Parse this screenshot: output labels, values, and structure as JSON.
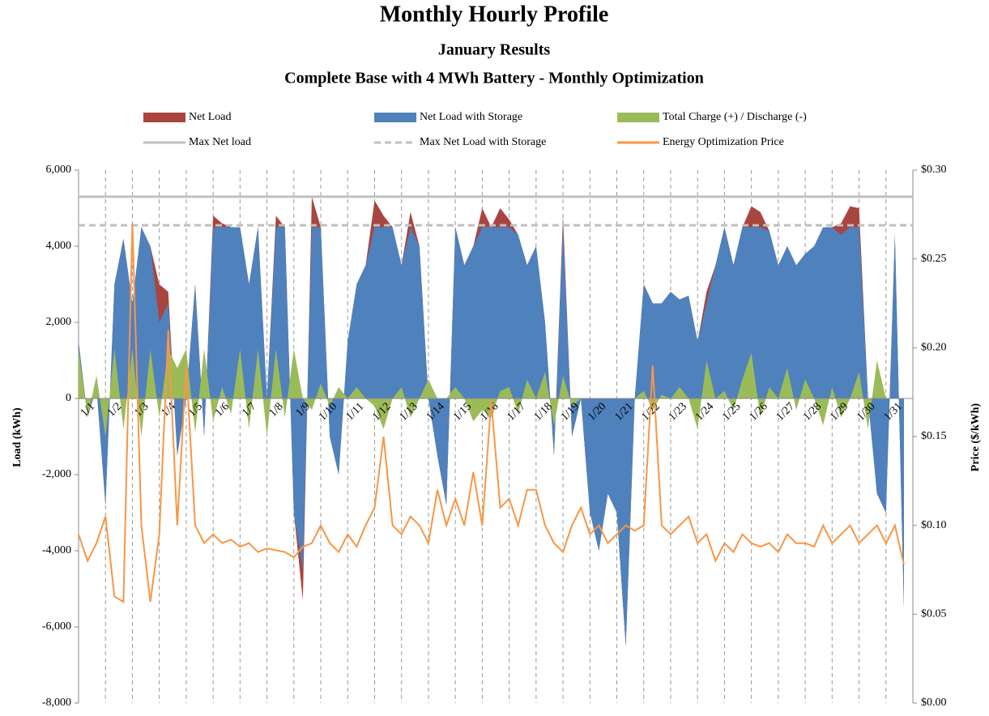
{
  "chart_data": {
    "type": "area",
    "title": "Monthly Hourly Profile",
    "subtitles": [
      "January Results",
      "Complete Base with 4 MWh Battery - Monthly Optimization"
    ],
    "ylabel": "Load (kWh)",
    "y2label": "Price ($/kWh)",
    "xlim": [
      0,
      744
    ],
    "xticks": [
      {
        "value": 0,
        "label": "1/1"
      },
      {
        "value": 24,
        "label": "1/2"
      },
      {
        "value": 48,
        "label": "1/3"
      },
      {
        "value": 72,
        "label": "1/4"
      },
      {
        "value": 96,
        "label": "1/5"
      },
      {
        "value": 120,
        "label": "1/6"
      },
      {
        "value": 144,
        "label": "1/7"
      },
      {
        "value": 168,
        "label": "1/8"
      },
      {
        "value": 192,
        "label": "1/9"
      },
      {
        "value": 216,
        "label": "1/10"
      },
      {
        "value": 240,
        "label": "1/11"
      },
      {
        "value": 264,
        "label": "1/12"
      },
      {
        "value": 288,
        "label": "1/13"
      },
      {
        "value": 312,
        "label": "1/14"
      },
      {
        "value": 336,
        "label": "1/15"
      },
      {
        "value": 360,
        "label": "1/16"
      },
      {
        "value": 384,
        "label": "1/17"
      },
      {
        "value": 408,
        "label": "1/18"
      },
      {
        "value": 432,
        "label": "1/19"
      },
      {
        "value": 456,
        "label": "1/20"
      },
      {
        "value": 480,
        "label": "1/21"
      },
      {
        "value": 504,
        "label": "1/22"
      },
      {
        "value": 528,
        "label": "1/23"
      },
      {
        "value": 552,
        "label": "1/24"
      },
      {
        "value": 576,
        "label": "1/25"
      },
      {
        "value": 600,
        "label": "1/26"
      },
      {
        "value": 624,
        "label": "1/27"
      },
      {
        "value": 648,
        "label": "1/28"
      },
      {
        "value": 672,
        "label": "1/29"
      },
      {
        "value": 696,
        "label": "1/30"
      },
      {
        "value": 720,
        "label": "1/31"
      }
    ],
    "ylim": [
      -8000,
      6000
    ],
    "yticks": [
      {
        "value": -8000,
        "label": "-8,000"
      },
      {
        "value": -6000,
        "label": "-6,000"
      },
      {
        "value": -4000,
        "label": "-4,000"
      },
      {
        "value": -2000,
        "label": "-2,000"
      },
      0,
      {
        "value": 2000,
        "label": "2,000"
      },
      {
        "value": 4000,
        "label": "4,000"
      },
      {
        "value": 6000,
        "label": "6,000"
      }
    ],
    "y2lim": [
      0,
      0.3
    ],
    "y2ticks": [
      {
        "value": 0,
        "label": "$0.00"
      },
      {
        "value": 0.05,
        "label": "$0.05"
      },
      {
        "value": 0.1,
        "label": "$0.10"
      },
      {
        "value": 0.15,
        "label": "$0.15"
      },
      {
        "value": 0.2,
        "label": "$0.20"
      },
      {
        "value": 0.25,
        "label": "$0.25"
      },
      {
        "value": 0.3,
        "label": "$0.30"
      }
    ],
    "x": [
      0,
      8,
      16,
      24,
      32,
      40,
      48,
      56,
      64,
      72,
      80,
      88,
      96,
      104,
      112,
      120,
      128,
      136,
      144,
      152,
      160,
      168,
      176,
      184,
      192,
      200,
      208,
      216,
      224,
      232,
      240,
      248,
      256,
      264,
      272,
      280,
      288,
      296,
      304,
      312,
      320,
      328,
      336,
      344,
      352,
      360,
      368,
      376,
      384,
      392,
      400,
      408,
      416,
      424,
      432,
      440,
      448,
      456,
      464,
      472,
      480,
      488,
      496,
      504,
      512,
      520,
      528,
      536,
      544,
      552,
      560,
      568,
      576,
      584,
      592,
      600,
      608,
      616,
      624,
      632,
      640,
      648,
      656,
      664,
      672,
      680,
      688,
      696,
      704,
      712,
      720,
      728,
      736
    ],
    "series": [
      {
        "name": "Net Load",
        "kind": "area",
        "color": "#a9453f",
        "values": [
          1500,
          -500,
          300,
          -2800,
          3000,
          4200,
          2500,
          4500,
          4000,
          3000,
          2800,
          -1500,
          0,
          3000,
          -1000,
          4800,
          4600,
          4500,
          4500,
          3000,
          4500,
          0,
          4800,
          4500,
          -3000,
          -5300,
          5300,
          4500,
          -1000,
          -2000,
          1500,
          3000,
          3500,
          5200,
          4800,
          4500,
          3500,
          4900,
          4000,
          0,
          -1500,
          -2800,
          4500,
          3500,
          4000,
          5000,
          4500,
          5000,
          4700,
          4300,
          3500,
          4000,
          2000,
          -1500,
          4800,
          -1000,
          0,
          -3000,
          -4000,
          -2500,
          -3000,
          -6500,
          0,
          3000,
          2500,
          2500,
          2800,
          2600,
          2700,
          1500,
          2800,
          3500,
          4500,
          3500,
          4500,
          5050,
          4900,
          4400,
          3500,
          4000,
          3500,
          3800,
          4000,
          4500,
          4500,
          4600,
          5050,
          5000,
          0,
          -2500,
          -3000,
          4300,
          -5500
        ]
      },
      {
        "name": "Net Load with Storage",
        "kind": "area",
        "color": "#4f81bd",
        "values": [
          1500,
          -500,
          300,
          -2800,
          3000,
          4200,
          2500,
          4500,
          4000,
          2000,
          2500,
          -1500,
          0,
          3000,
          -1000,
          4500,
          4500,
          4500,
          4500,
          3000,
          4500,
          0,
          4500,
          4500,
          -3000,
          -4500,
          4500,
          4500,
          -1000,
          -2000,
          1500,
          3000,
          3500,
          4500,
          4500,
          4500,
          3500,
          4500,
          4000,
          0,
          -1500,
          -2800,
          4500,
          3500,
          4000,
          4500,
          4500,
          4500,
          4500,
          4300,
          3500,
          4000,
          2000,
          -1500,
          4500,
          -1000,
          0,
          -3000,
          -4000,
          -2500,
          -3000,
          -6500,
          0,
          3000,
          2500,
          2500,
          2800,
          2600,
          2700,
          1500,
          2500,
          3500,
          4500,
          3500,
          4500,
          4500,
          4500,
          4400,
          3500,
          4000,
          3500,
          3800,
          4000,
          4500,
          4500,
          4300,
          4500,
          4500,
          0,
          -2500,
          -3000,
          4300,
          -5500
        ]
      },
      {
        "name": "Total Charge (+) / Discharge (-)",
        "kind": "area",
        "color": "#9bbb59",
        "values": [
          1300,
          -500,
          600,
          -1000,
          1300,
          -800,
          1300,
          -1000,
          1300,
          -500,
          1300,
          800,
          1300,
          -900,
          1300,
          -600,
          300,
          -400,
          1300,
          -800,
          1300,
          -1000,
          1300,
          -500,
          1300,
          0,
          -300,
          400,
          -200,
          300,
          0,
          300,
          0,
          -200,
          -800,
          0,
          300,
          -500,
          0,
          500,
          0,
          0,
          300,
          0,
          -600,
          -300,
          -500,
          200,
          300,
          -400,
          500,
          0,
          700,
          -700,
          600,
          -200,
          0,
          0,
          0,
          0,
          0,
          0,
          0,
          200,
          -300,
          100,
          0,
          300,
          0,
          -800,
          1000,
          0,
          200,
          -300,
          500,
          1200,
          -500,
          300,
          0,
          800,
          -300,
          500,
          0,
          -700,
          300,
          -500,
          0,
          700,
          -800,
          1000,
          0,
          0,
          0
        ]
      },
      {
        "name": "Max Net load",
        "kind": "hline",
        "color": "#bfbfbf",
        "dashed": false,
        "value": 5300
      },
      {
        "name": "Max Net Load with Storage",
        "kind": "hline",
        "color": "#bfbfbf",
        "dashed": true,
        "value": 4550
      },
      {
        "name": "Energy Optimization Price",
        "kind": "line",
        "axis": "y2",
        "color": "#f79646",
        "values": [
          0.095,
          0.08,
          0.09,
          0.105,
          0.06,
          0.057,
          0.27,
          0.1,
          0.057,
          0.095,
          0.21,
          0.1,
          0.19,
          0.1,
          0.09,
          0.095,
          0.09,
          0.092,
          0.088,
          0.09,
          0.085,
          0.087,
          0.086,
          0.085,
          0.082,
          0.088,
          0.09,
          0.1,
          0.09,
          0.085,
          0.095,
          0.088,
          0.1,
          0.11,
          0.15,
          0.1,
          0.095,
          0.105,
          0.1,
          0.09,
          0.12,
          0.1,
          0.115,
          0.1,
          0.13,
          0.1,
          0.17,
          0.11,
          0.115,
          0.1,
          0.12,
          0.12,
          0.1,
          0.09,
          0.085,
          0.1,
          0.11,
          0.095,
          0.1,
          0.09,
          0.095,
          0.1,
          0.097,
          0.1,
          0.19,
          0.1,
          0.095,
          0.1,
          0.105,
          0.09,
          0.095,
          0.08,
          0.09,
          0.085,
          0.095,
          0.09,
          0.088,
          0.09,
          0.085,
          0.095,
          0.09,
          0.09,
          0.088,
          0.1,
          0.09,
          0.095,
          0.1,
          0.09,
          0.095,
          0.1,
          0.09,
          0.1,
          0.078
        ]
      }
    ]
  }
}
